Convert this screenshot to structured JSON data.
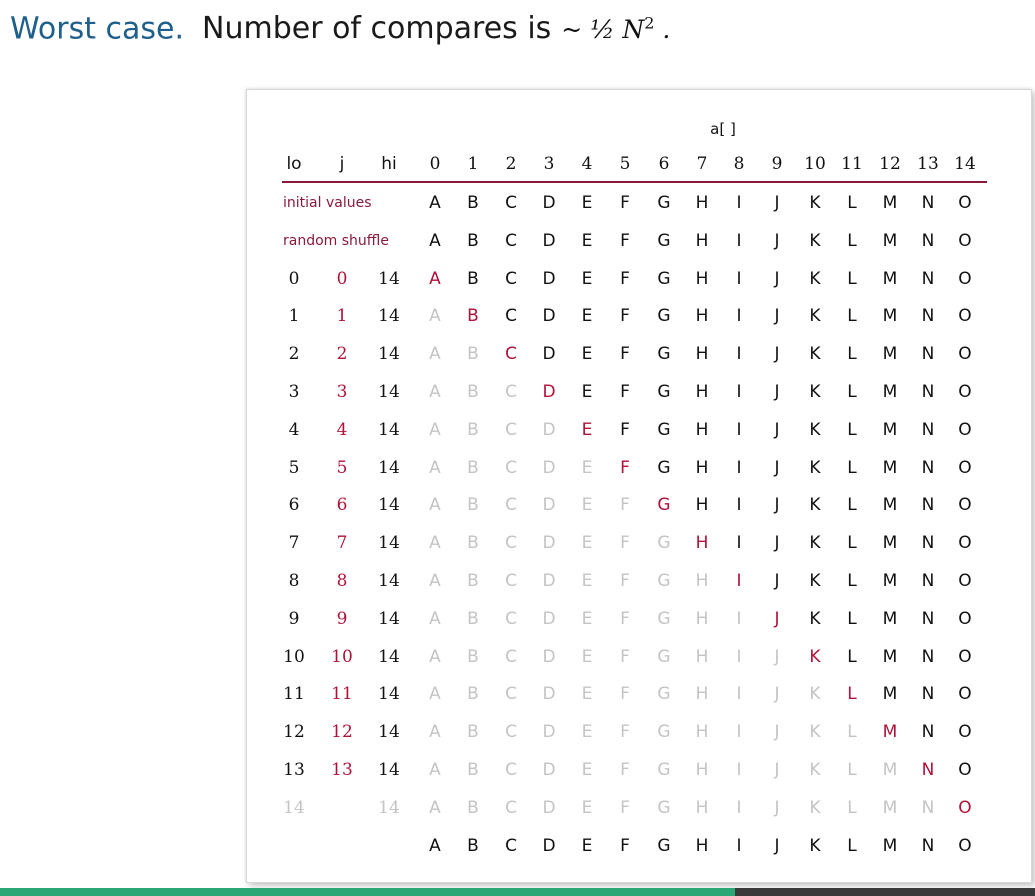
{
  "heading": {
    "lead": "Worst case.",
    "body": "Number of compares is",
    "math_prefix": "~ ½",
    "math_var": "N",
    "math_exp": "2",
    "math_suffix": "."
  },
  "table": {
    "array_title": "a[ ]",
    "col_headers": {
      "lo": "lo",
      "j": "j",
      "hi": "hi"
    },
    "indices": [
      "0",
      "1",
      "2",
      "3",
      "4",
      "5",
      "6",
      "7",
      "8",
      "9",
      "10",
      "11",
      "12",
      "13",
      "14"
    ],
    "label_rows": [
      {
        "label": "initial values",
        "values": [
          "A",
          "B",
          "C",
          "D",
          "E",
          "F",
          "G",
          "H",
          "I",
          "J",
          "K",
          "L",
          "M",
          "N",
          "O"
        ]
      },
      {
        "label": "random shuffle",
        "values": [
          "A",
          "B",
          "C",
          "D",
          "E",
          "F",
          "G",
          "H",
          "I",
          "J",
          "K",
          "L",
          "M",
          "N",
          "O"
        ]
      }
    ],
    "step_rows": [
      {
        "lo": "0",
        "j": "0",
        "hi": "14"
      },
      {
        "lo": "1",
        "j": "1",
        "hi": "14"
      },
      {
        "lo": "2",
        "j": "2",
        "hi": "14"
      },
      {
        "lo": "3",
        "j": "3",
        "hi": "14"
      },
      {
        "lo": "4",
        "j": "4",
        "hi": "14"
      },
      {
        "lo": "5",
        "j": "5",
        "hi": "14"
      },
      {
        "lo": "6",
        "j": "6",
        "hi": "14"
      },
      {
        "lo": "7",
        "j": "7",
        "hi": "14"
      },
      {
        "lo": "8",
        "j": "8",
        "hi": "14"
      },
      {
        "lo": "9",
        "j": "9",
        "hi": "14"
      },
      {
        "lo": "10",
        "j": "10",
        "hi": "14"
      },
      {
        "lo": "11",
        "j": "11",
        "hi": "14"
      },
      {
        "lo": "12",
        "j": "12",
        "hi": "14"
      },
      {
        "lo": "13",
        "j": "13",
        "hi": "14"
      },
      {
        "lo": "14",
        "j": "",
        "hi": "14"
      }
    ],
    "step_values": [
      "A",
      "B",
      "C",
      "D",
      "E",
      "F",
      "G",
      "H",
      "I",
      "J",
      "K",
      "L",
      "M",
      "N",
      "O"
    ],
    "final_values": [
      "A",
      "B",
      "C",
      "D",
      "E",
      "F",
      "G",
      "H",
      "I",
      "J",
      "K",
      "L",
      "M",
      "N",
      "O"
    ]
  },
  "colors": {
    "highlight": "#b0123a",
    "label": "#8b1a3a",
    "faded": "#c4c4c4",
    "normal": "#111111",
    "heading_lead": "#1f5f8b"
  }
}
